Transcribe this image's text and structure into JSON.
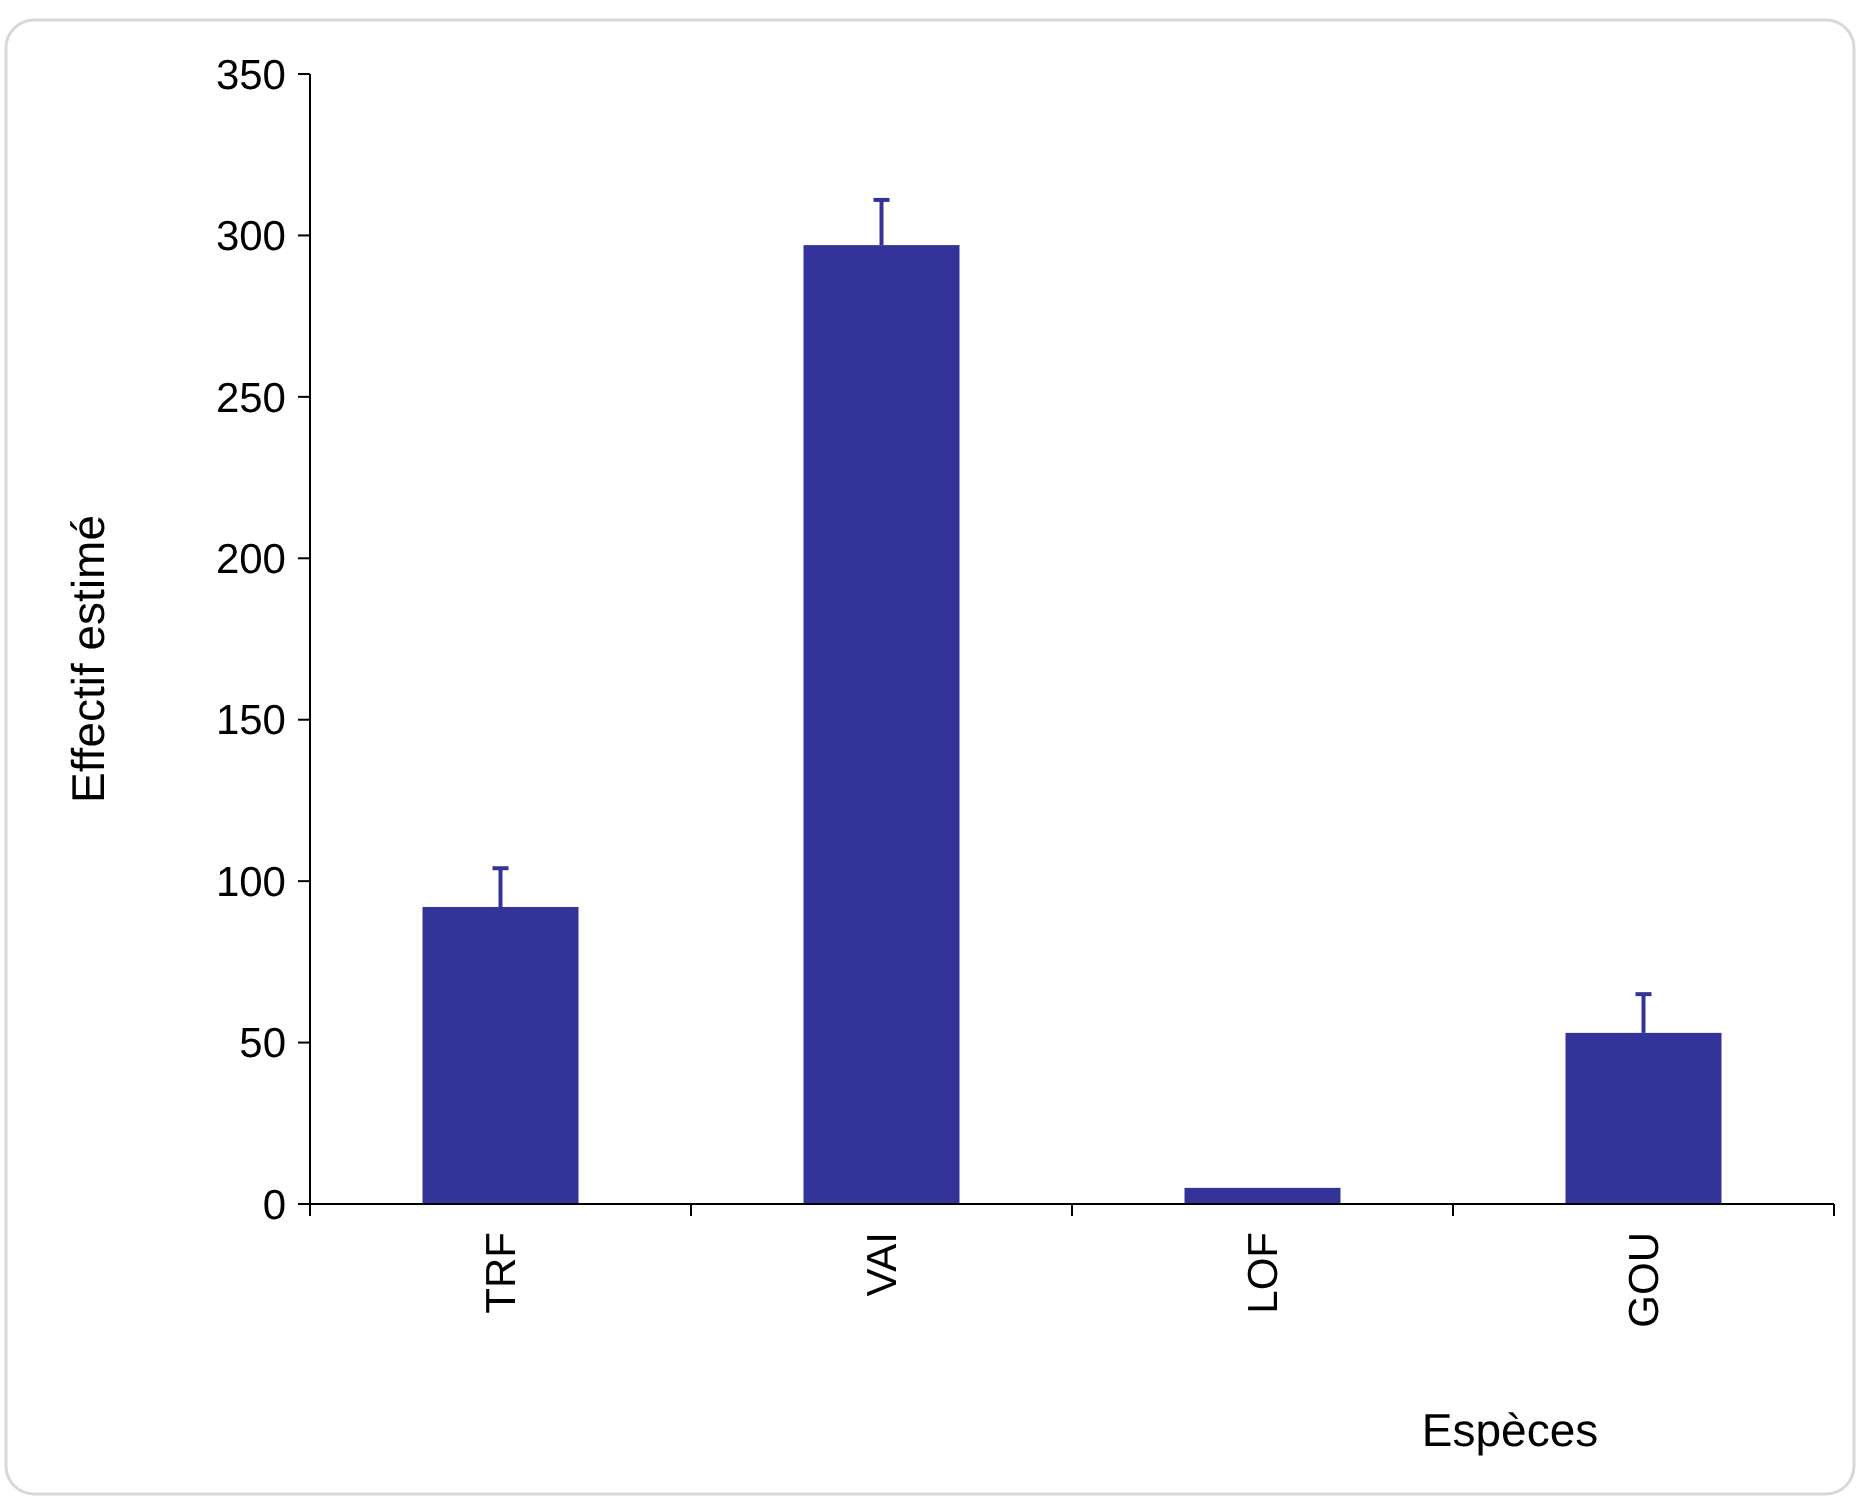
{
  "chart_data": {
    "type": "bar",
    "xlabel": "Espèces",
    "ylabel": "Effectif estimé",
    "categories": [
      "TRF",
      "VAI",
      "LOF",
      "GOU"
    ],
    "values": [
      92,
      297,
      5,
      53
    ],
    "errors": [
      [
        92,
        104
      ],
      [
        297,
        311
      ],
      null,
      [
        53,
        65
      ]
    ],
    "color": "#333399",
    "ylim": [
      0,
      350
    ],
    "yticks": [
      0,
      50,
      100,
      150,
      200,
      250,
      300,
      350
    ],
    "grid": false
  }
}
